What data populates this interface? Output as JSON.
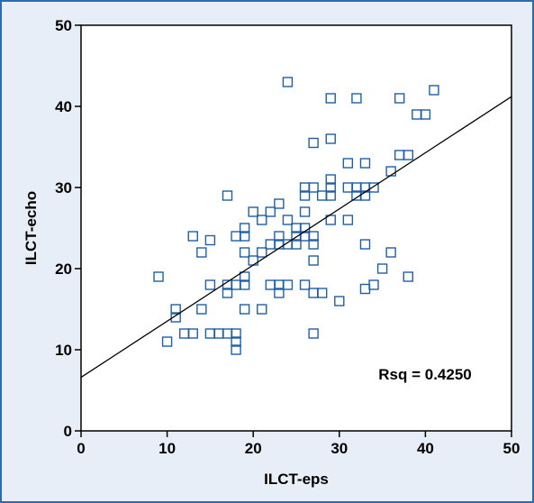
{
  "chart_data": {
    "type": "scatter",
    "title": "",
    "xlabel": "ILCT-eps",
    "ylabel": "ILCT-echo",
    "xlim": [
      0,
      50
    ],
    "ylim": [
      0,
      50
    ],
    "xticks": [
      0,
      10,
      20,
      30,
      40,
      50
    ],
    "yticks": [
      0,
      10,
      20,
      30,
      40,
      50
    ],
    "grid": false,
    "marker": "open-square",
    "marker_color": "#1f5fa8",
    "annotation": "Rsq = 0.4250",
    "regression_line": {
      "x": [
        0,
        50
      ],
      "y": [
        6.6,
        41.2
      ]
    },
    "points": [
      [
        9,
        19
      ],
      [
        10,
        11
      ],
      [
        11,
        15
      ],
      [
        11,
        14
      ],
      [
        12,
        12
      ],
      [
        13,
        12
      ],
      [
        13,
        24
      ],
      [
        14,
        15
      ],
      [
        14,
        22
      ],
      [
        15,
        12
      ],
      [
        15,
        18
      ],
      [
        15,
        23.5
      ],
      [
        16,
        12
      ],
      [
        17,
        12
      ],
      [
        17,
        17
      ],
      [
        17,
        18
      ],
      [
        17,
        29
      ],
      [
        18,
        12
      ],
      [
        18,
        11
      ],
      [
        18,
        10
      ],
      [
        18,
        18
      ],
      [
        18,
        24
      ],
      [
        19,
        15
      ],
      [
        19,
        18
      ],
      [
        19,
        19
      ],
      [
        19,
        22
      ],
      [
        19,
        24
      ],
      [
        19,
        25
      ],
      [
        20,
        21
      ],
      [
        20,
        27
      ],
      [
        21,
        15
      ],
      [
        21,
        22
      ],
      [
        21,
        26
      ],
      [
        22,
        18
      ],
      [
        22,
        23
      ],
      [
        22,
        27
      ],
      [
        23,
        17
      ],
      [
        23,
        18
      ],
      [
        23,
        23
      ],
      [
        23,
        24
      ],
      [
        23,
        28
      ],
      [
        24,
        18
      ],
      [
        24,
        23
      ],
      [
        24,
        26
      ],
      [
        24,
        43
      ],
      [
        25,
        23
      ],
      [
        25,
        24
      ],
      [
        25,
        25
      ],
      [
        26,
        18
      ],
      [
        26,
        24
      ],
      [
        26,
        25
      ],
      [
        26,
        27
      ],
      [
        26,
        29
      ],
      [
        26,
        30
      ],
      [
        27,
        12
      ],
      [
        27,
        17
      ],
      [
        27,
        21
      ],
      [
        27,
        23
      ],
      [
        27,
        24
      ],
      [
        27,
        30
      ],
      [
        27,
        35.5
      ],
      [
        28,
        17
      ],
      [
        28,
        29
      ],
      [
        29,
        26
      ],
      [
        29,
        29
      ],
      [
        29,
        30
      ],
      [
        29,
        31
      ],
      [
        29,
        36
      ],
      [
        29,
        41
      ],
      [
        30,
        16
      ],
      [
        31,
        26
      ],
      [
        31,
        30
      ],
      [
        31,
        33
      ],
      [
        32,
        29
      ],
      [
        32,
        30
      ],
      [
        32,
        41
      ],
      [
        33,
        17.5
      ],
      [
        33,
        23
      ],
      [
        33,
        29
      ],
      [
        33,
        30
      ],
      [
        33,
        33
      ],
      [
        34,
        18
      ],
      [
        34,
        30
      ],
      [
        35,
        20
      ],
      [
        36,
        22
      ],
      [
        36,
        32
      ],
      [
        37,
        34
      ],
      [
        37,
        41
      ],
      [
        38,
        19
      ],
      [
        38,
        34
      ],
      [
        39,
        39
      ],
      [
        40,
        39
      ],
      [
        41,
        42
      ]
    ]
  }
}
